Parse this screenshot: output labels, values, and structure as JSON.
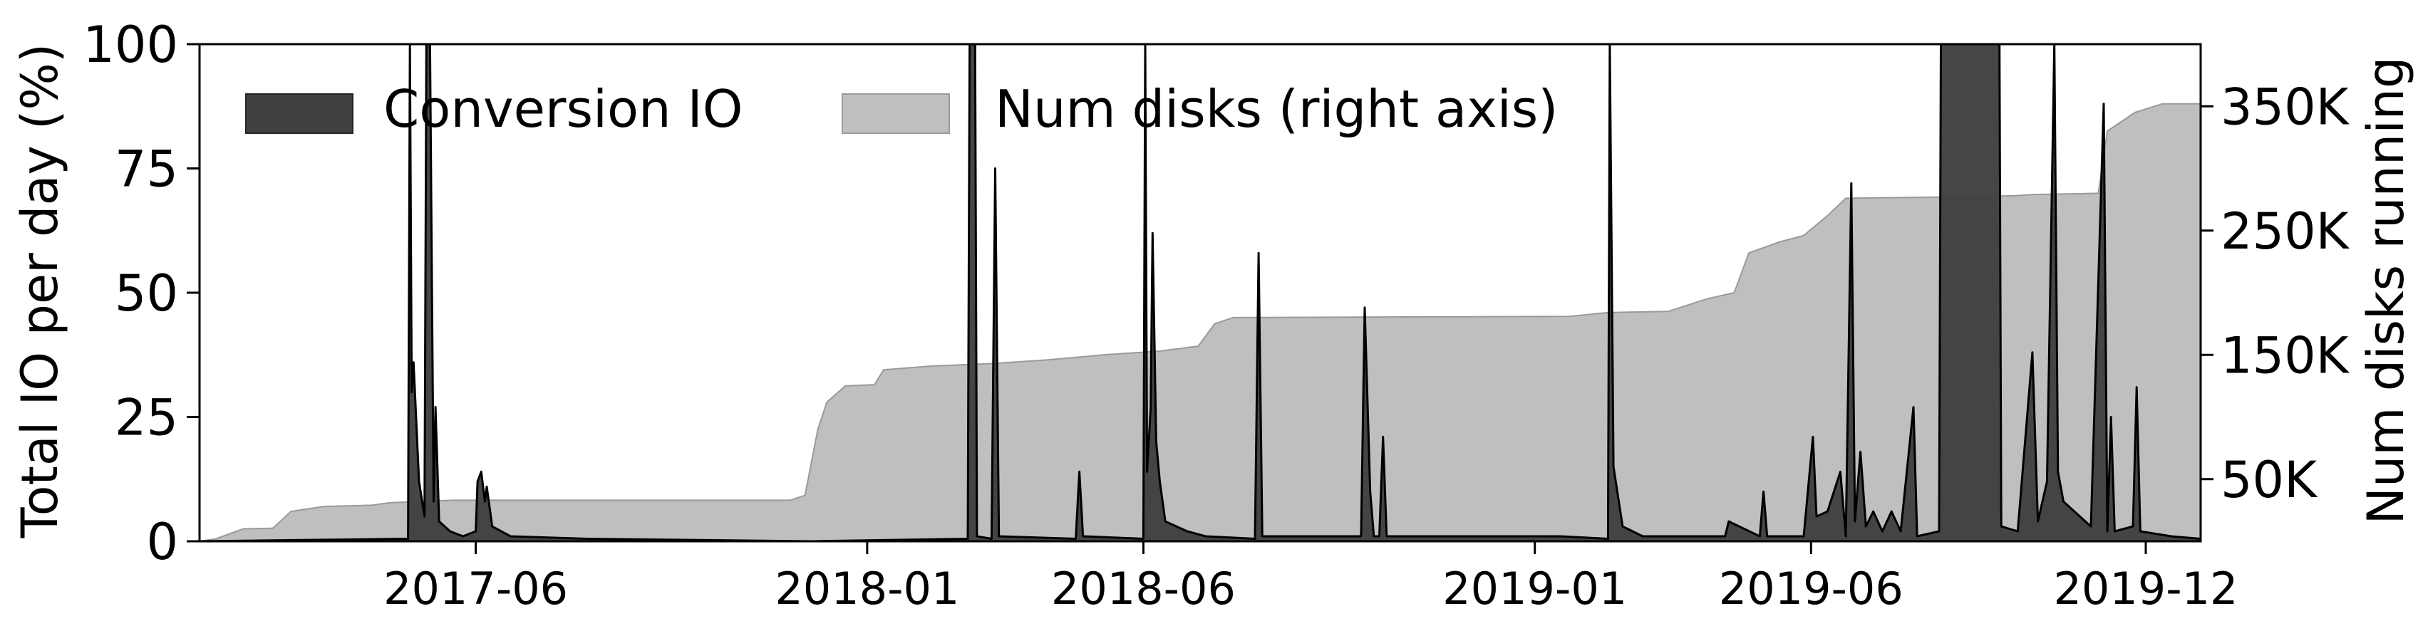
{
  "chart_data": {
    "type": "area",
    "title": "",
    "xlabel": "",
    "ylabel": "Total IO per day (%)",
    "ylabel_right": "Num disks running",
    "xlim": [
      "2017-01-01",
      "2019-12-31"
    ],
    "ylim": [
      0,
      100
    ],
    "ylim_right": [
      0,
      400000
    ],
    "x_ticks": [
      "2017-06",
      "2018-01",
      "2018-06",
      "2019-01",
      "2019-06",
      "2019-12"
    ],
    "y_ticks": [
      0,
      25,
      50,
      75,
      100
    ],
    "y_ticks_right": [
      50000,
      150000,
      250000,
      350000
    ],
    "y_tick_labels_right": [
      "50K",
      "150K",
      "250K",
      "350K"
    ],
    "grid": false,
    "legend_position": "top",
    "legend": [
      "Conversion IO",
      "Num disks (right axis)"
    ],
    "series": [
      {
        "name": "Num disks (right axis)",
        "axis": "right",
        "color": "#bfbfbf",
        "points": [
          [
            "2017-01-01",
            0
          ],
          [
            "2017-01-10",
            2000
          ],
          [
            "2017-01-25",
            10000
          ],
          [
            "2017-02-10",
            10500
          ],
          [
            "2017-02-20",
            24000
          ],
          [
            "2017-03-10",
            28000
          ],
          [
            "2017-04-05",
            29000
          ],
          [
            "2017-04-15",
            31000
          ],
          [
            "2017-05-20",
            33000
          ],
          [
            "2017-06-10",
            33000
          ],
          [
            "2017-11-20",
            33000
          ],
          [
            "2017-11-28",
            37000
          ],
          [
            "2017-12-05",
            90000
          ],
          [
            "2017-12-10",
            112000
          ],
          [
            "2017-12-20",
            125000
          ],
          [
            "2018-01-05",
            126000
          ],
          [
            "2018-01-10",
            138000
          ],
          [
            "2018-02-05",
            141000
          ],
          [
            "2018-03-10",
            143000
          ],
          [
            "2018-04-10",
            146000
          ],
          [
            "2018-05-10",
            150000
          ],
          [
            "2018-06-10",
            153000
          ],
          [
            "2018-07-01",
            157000
          ],
          [
            "2018-07-10",
            175000
          ],
          [
            "2018-07-20",
            180000
          ],
          [
            "2019-01-20",
            181000
          ],
          [
            "2019-02-10",
            184000
          ],
          [
            "2019-03-15",
            185000
          ],
          [
            "2019-04-05",
            195000
          ],
          [
            "2019-04-20",
            200000
          ],
          [
            "2019-04-28",
            232000
          ],
          [
            "2019-05-15",
            241000
          ],
          [
            "2019-05-28",
            246000
          ],
          [
            "2019-06-10",
            262000
          ],
          [
            "2019-06-20",
            276000
          ],
          [
            "2019-08-15",
            277000
          ],
          [
            "2019-09-20",
            278000
          ],
          [
            "2019-10-01",
            279000
          ],
          [
            "2019-11-05",
            280000
          ],
          [
            "2019-11-10",
            330000
          ],
          [
            "2019-11-25",
            345000
          ],
          [
            "2019-12-10",
            352000
          ],
          [
            "2019-12-31",
            352000
          ]
        ]
      },
      {
        "name": "Conversion IO",
        "axis": "left",
        "color": "#404040",
        "points": [
          [
            "2017-01-01",
            0
          ],
          [
            "2017-04-25",
            0.5
          ],
          [
            "2017-04-26",
            100
          ],
          [
            "2017-04-27",
            30
          ],
          [
            "2017-04-28",
            36
          ],
          [
            "2017-05-01",
            12
          ],
          [
            "2017-05-04",
            5
          ],
          [
            "2017-05-05",
            100
          ],
          [
            "2017-05-07",
            100
          ],
          [
            "2017-05-09",
            8
          ],
          [
            "2017-05-10",
            27
          ],
          [
            "2017-05-12",
            4
          ],
          [
            "2017-05-18",
            2
          ],
          [
            "2017-05-25",
            1
          ],
          [
            "2017-06-01",
            2
          ],
          [
            "2017-06-02",
            12
          ],
          [
            "2017-06-04",
            14
          ],
          [
            "2017-06-06",
            8
          ],
          [
            "2017-06-07",
            11
          ],
          [
            "2017-06-10",
            3
          ],
          [
            "2017-06-20",
            1
          ],
          [
            "2017-08-01",
            0.5
          ],
          [
            "2017-12-01",
            0
          ],
          [
            "2018-02-25",
            0.5
          ],
          [
            "2018-02-26",
            100
          ],
          [
            "2018-03-01",
            100
          ],
          [
            "2018-03-02",
            1
          ],
          [
            "2018-03-10",
            0.5
          ],
          [
            "2018-03-12",
            75
          ],
          [
            "2018-03-14",
            1
          ],
          [
            "2018-04-25",
            0.5
          ],
          [
            "2018-04-27",
            14
          ],
          [
            "2018-04-29",
            1
          ],
          [
            "2018-06-01",
            0.5
          ],
          [
            "2018-06-02",
            100
          ],
          [
            "2018-06-03",
            14
          ],
          [
            "2018-06-05",
            27
          ],
          [
            "2018-06-06",
            62
          ],
          [
            "2018-06-08",
            20
          ],
          [
            "2018-06-10",
            12
          ],
          [
            "2018-06-13",
            4
          ],
          [
            "2018-06-25",
            2
          ],
          [
            "2018-07-05",
            1
          ],
          [
            "2018-08-01",
            0.5
          ],
          [
            "2018-08-03",
            58
          ],
          [
            "2018-08-05",
            1
          ],
          [
            "2018-09-28",
            1
          ],
          [
            "2018-09-30",
            47
          ],
          [
            "2018-10-03",
            10
          ],
          [
            "2018-10-05",
            1
          ],
          [
            "2018-10-08",
            1
          ],
          [
            "2018-10-10",
            21
          ],
          [
            "2018-10-12",
            1
          ],
          [
            "2019-01-15",
            1
          ],
          [
            "2019-02-10",
            0.5
          ],
          [
            "2019-02-11",
            100
          ],
          [
            "2019-02-13",
            15
          ],
          [
            "2019-02-18",
            3
          ],
          [
            "2019-03-01",
            1
          ],
          [
            "2019-04-15",
            1
          ],
          [
            "2019-04-17",
            4
          ],
          [
            "2019-05-04",
            1
          ],
          [
            "2019-05-06",
            10
          ],
          [
            "2019-05-08",
            1
          ],
          [
            "2019-05-28",
            1
          ],
          [
            "2019-06-02",
            21
          ],
          [
            "2019-06-04",
            5
          ],
          [
            "2019-06-10",
            6
          ],
          [
            "2019-06-17",
            14
          ],
          [
            "2019-06-20",
            1
          ],
          [
            "2019-06-23",
            72
          ],
          [
            "2019-06-25",
            4
          ],
          [
            "2019-06-28",
            18
          ],
          [
            "2019-07-01",
            3
          ],
          [
            "2019-07-05",
            6
          ],
          [
            "2019-07-10",
            2
          ],
          [
            "2019-07-15",
            6
          ],
          [
            "2019-07-20",
            2
          ],
          [
            "2019-07-27",
            27
          ],
          [
            "2019-07-29",
            1
          ],
          [
            "2019-08-10",
            2
          ],
          [
            "2019-08-11",
            100
          ],
          [
            "2019-08-12",
            100
          ],
          [
            "2019-09-12",
            100
          ],
          [
            "2019-09-13",
            3
          ],
          [
            "2019-09-22",
            2
          ],
          [
            "2019-09-30",
            38
          ],
          [
            "2019-10-03",
            4
          ],
          [
            "2019-10-08",
            12
          ],
          [
            "2019-10-12",
            100
          ],
          [
            "2019-10-14",
            14
          ],
          [
            "2019-10-17",
            8
          ],
          [
            "2019-11-01",
            3
          ],
          [
            "2019-11-08",
            88
          ],
          [
            "2019-11-10",
            2
          ],
          [
            "2019-11-12",
            25
          ],
          [
            "2019-11-14",
            2
          ],
          [
            "2019-11-24",
            3
          ],
          [
            "2019-11-26",
            31
          ],
          [
            "2019-11-28",
            2
          ],
          [
            "2019-12-15",
            1
          ],
          [
            "2019-12-31",
            0.5
          ]
        ]
      }
    ]
  }
}
